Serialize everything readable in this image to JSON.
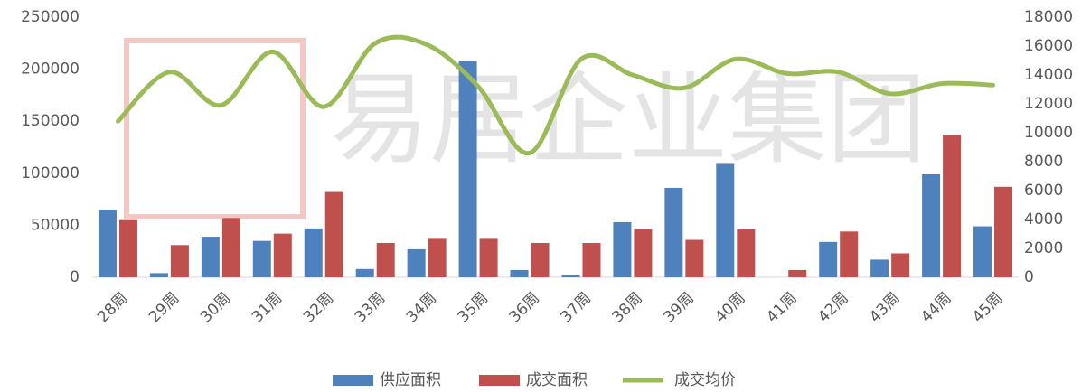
{
  "chart_data": {
    "type": "bar",
    "annotations": [
      "易居企业集团"
    ],
    "categories": [
      "28周",
      "29周",
      "30周",
      "31周",
      "32周",
      "33周",
      "34周",
      "35周",
      "36周",
      "37周",
      "38周",
      "39周",
      "40周",
      "41周",
      "42周",
      "43周",
      "44周",
      "45周"
    ],
    "series": [
      {
        "name": "供应面积",
        "color": "#4f81bd",
        "type": "bar",
        "values": [
          65000,
          4000,
          39000,
          35000,
          47000,
          8000,
          27000,
          208000,
          7000,
          2000,
          53000,
          86000,
          109000,
          0,
          34000,
          17000,
          99000,
          49000
        ]
      },
      {
        "name": "成交面积",
        "color": "#c0504d",
        "type": "bar",
        "values": [
          55000,
          31000,
          57000,
          42000,
          82000,
          33000,
          37000,
          37000,
          33000,
          33000,
          46000,
          36000,
          46000,
          7000,
          44000,
          23000,
          137000,
          87000
        ]
      },
      {
        "name": "成交均价",
        "color": "#9bbb59",
        "type": "line",
        "axis": "y2",
        "values": [
          10800,
          14200,
          11900,
          15600,
          11800,
          16200,
          16100,
          13200,
          8600,
          15100,
          14000,
          13100,
          15100,
          14100,
          14200,
          12700,
          13400,
          13300
        ]
      }
    ],
    "ylim": [
      0,
      250000
    ],
    "yticks": [
      0,
      50000,
      100000,
      150000,
      200000,
      250000
    ],
    "y2lim": [
      0,
      18000
    ],
    "y2ticks": [
      0,
      2000,
      4000,
      6000,
      8000,
      10000,
      12000,
      14000,
      16000,
      18000
    ],
    "legend": "bottom"
  }
}
